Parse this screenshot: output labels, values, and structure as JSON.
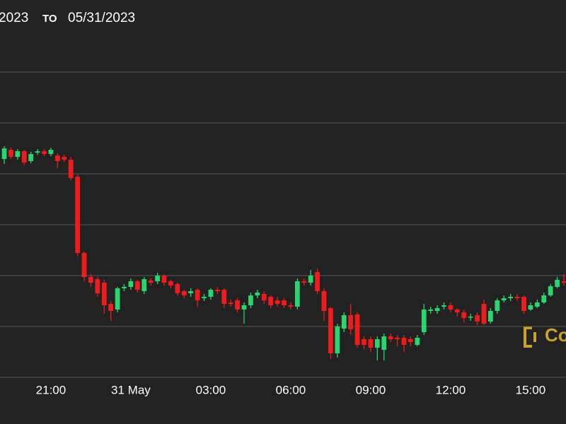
{
  "chart_data": {
    "type": "candlestick",
    "date_from": "2023",
    "date_separator": "TO",
    "date_to": "05/31/2023",
    "watermark": "Co",
    "up_color": "#2bd46f",
    "down_color": "#ee1c1c",
    "x": [
      19.25,
      19.5,
      19.75,
      20,
      20.25,
      20.5,
      20.75,
      21,
      21.25,
      21.5,
      21.75,
      22,
      22.25,
      22.5,
      22.75,
      23,
      23.25,
      23.5,
      23.75,
      24,
      24.25,
      24.5,
      24.75,
      25,
      25.25,
      25.5,
      25.75,
      26,
      26.25,
      26.5,
      26.75,
      27,
      27.25,
      27.5,
      27.75,
      28,
      28.25,
      28.5,
      28.75,
      29,
      29.25,
      29.5,
      29.75,
      30,
      30.25,
      30.5,
      30.75,
      31,
      31.25,
      31.5,
      31.75,
      32,
      32.25,
      32.5,
      32.75,
      33,
      33.25,
      33.5,
      33.75,
      34,
      34.25,
      34.5,
      34.75,
      35,
      35.25,
      35.5,
      35.75,
      36,
      36.25,
      36.5,
      36.75,
      37,
      37.25,
      37.5,
      37.75,
      38,
      38.25,
      38.5,
      38.75,
      39,
      39.25,
      39.5,
      39.75,
      40,
      40.25
    ],
    "open": [
      309,
      322,
      312,
      320,
      306,
      318,
      320,
      316,
      314,
      312,
      308,
      284,
      176,
      142,
      139,
      134,
      104,
      96,
      126,
      128,
      136,
      122,
      137,
      136,
      144,
      136,
      132,
      122,
      119,
      124,
      112,
      114,
      124,
      124,
      106,
      109,
      96,
      102,
      116,
      118,
      114,
      109,
      109,
      102,
      100,
      136,
      134,
      149,
      122,
      98,
      34,
      69,
      88,
      89,
      54,
      54,
      42,
      39,
      58,
      56,
      56,
      54,
      46,
      64,
      94,
      94,
      100,
      102,
      96,
      92,
      86,
      88,
      104,
      79,
      94,
      109,
      112,
      114,
      114,
      96,
      100,
      106,
      116,
      128,
      136
    ],
    "high": [
      327,
      325,
      323,
      322,
      319,
      323,
      323,
      325,
      317,
      315,
      312,
      287,
      178,
      146,
      142,
      138,
      108,
      128,
      132,
      140,
      138,
      142,
      140,
      148,
      146,
      138,
      134,
      124,
      126,
      126,
      118,
      126,
      128,
      126,
      110,
      112,
      106,
      120,
      124,
      122,
      116,
      114,
      112,
      106,
      140,
      140,
      152,
      154,
      126,
      100,
      76,
      92,
      104,
      92,
      58,
      58,
      58,
      62,
      62,
      60,
      60,
      58,
      60,
      104,
      100,
      102,
      106,
      106,
      98,
      96,
      90,
      92,
      110,
      98,
      112,
      116,
      118,
      118,
      116,
      106,
      110,
      120,
      132,
      142,
      146
    ],
    "low": [
      302,
      309,
      308,
      300,
      303,
      315,
      313,
      313,
      296,
      305,
      279,
      172,
      136,
      128,
      114,
      90,
      80,
      92,
      122,
      124,
      120,
      118,
      130,
      132,
      130,
      126,
      116,
      112,
      114,
      100,
      108,
      110,
      118,
      98,
      100,
      92,
      76,
      98,
      112,
      104,
      98,
      100,
      98,
      96,
      96,
      130,
      130,
      118,
      80,
      26,
      28,
      64,
      60,
      42,
      40,
      36,
      24,
      24,
      50,
      44,
      36,
      44,
      44,
      60,
      90,
      90,
      96,
      92,
      86,
      78,
      80,
      74,
      74,
      76,
      90,
      106,
      108,
      108,
      90,
      94,
      98,
      104,
      114,
      126,
      130
    ],
    "close": [
      324,
      312,
      320,
      304,
      316,
      320,
      316,
      322,
      306,
      308,
      282,
      176,
      142,
      134,
      119,
      102,
      94,
      126,
      128,
      136,
      124,
      139,
      134,
      144,
      134,
      130,
      119,
      116,
      122,
      109,
      114,
      124,
      122,
      104,
      104,
      96,
      102,
      116,
      120,
      109,
      102,
      104,
      102,
      100,
      136,
      134,
      144,
      122,
      94,
      34,
      72,
      88,
      68,
      46,
      46,
      42,
      54,
      58,
      54,
      54,
      46,
      50,
      56,
      96,
      96,
      98,
      102,
      96,
      92,
      84,
      86,
      79,
      76,
      94,
      109,
      112,
      114,
      112,
      94,
      102,
      106,
      116,
      129,
      138,
      134
    ],
    "xlim": [
      19.09,
      40.33
    ],
    "xticks": [
      {
        "value": 21,
        "label": "21:00"
      },
      {
        "value": 24,
        "label": "31 May"
      },
      {
        "value": 27,
        "label": "03:00"
      },
      {
        "value": 30,
        "label": "06:00"
      },
      {
        "value": 33,
        "label": "09:00"
      },
      {
        "value": 36,
        "label": "12:00"
      },
      {
        "value": 39,
        "label": "15:00"
      }
    ],
    "ylim": [
      -66,
      534
    ],
    "yticks": [
      0,
      72,
      144,
      216,
      288,
      360,
      432
    ],
    "grid": true
  }
}
